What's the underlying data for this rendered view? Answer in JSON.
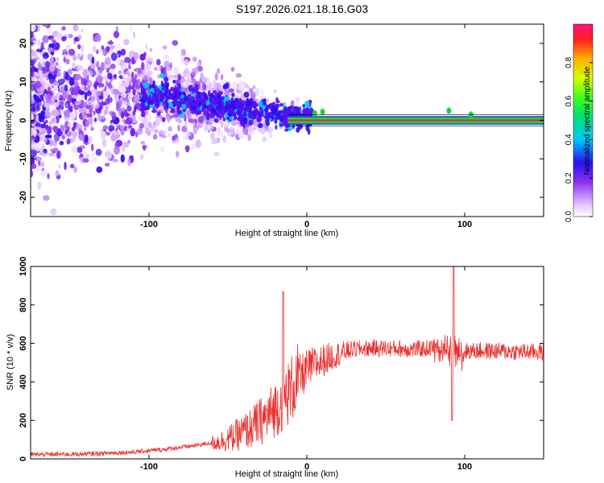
{
  "title": "S197.2026.021.18.16.G03",
  "chart_data": [
    {
      "type": "heatmap",
      "name": "spectrogram",
      "xlabel": "Height of straight line (km)",
      "ylabel": "Frequency (Hz)",
      "xlim": [
        -175,
        150
      ],
      "ylim": [
        -25,
        25
      ],
      "xticks": [
        -100,
        0,
        100
      ],
      "xtick_labels": [
        "-100",
        "0",
        "100"
      ],
      "yticks": [
        20,
        10,
        0,
        -10,
        -20
      ],
      "ytick_labels": [
        "20",
        "10",
        "0",
        "-10",
        "-20"
      ],
      "trend": [
        {
          "x": -100,
          "y": 6
        },
        {
          "x": -90,
          "y": 7
        },
        {
          "x": -80,
          "y": 5
        },
        {
          "x": -60,
          "y": 4
        },
        {
          "x": -40,
          "y": 3
        },
        {
          "x": -20,
          "y": 2
        },
        {
          "x": -12,
          "y": 1
        },
        {
          "x": 0,
          "y": 0.5
        },
        {
          "x": 8,
          "y": 1.5
        },
        {
          "x": 150,
          "y": 0
        }
      ],
      "carrier_band_hz": [
        -0.8,
        0.8
      ],
      "colorbar": {
        "label": "Normalized spectral amplitude",
        "ticks": [
          0.0,
          0.2,
          0.4,
          0.6,
          0.8
        ],
        "tick_labels": [
          "0.0",
          "0.2",
          "0.4",
          "0.6",
          "0.8"
        ]
      }
    },
    {
      "type": "line",
      "name": "snr",
      "xlabel": "Height of straight line (km)",
      "ylabel": "SNR (10 * v/v)",
      "xlim": [
        -175,
        150
      ],
      "ylim": [
        0,
        1000
      ],
      "xticks": [
        -100,
        0,
        100
      ],
      "xtick_labels": [
        "-100",
        "0",
        "100"
      ],
      "yticks": [
        0,
        200,
        400,
        600,
        800,
        1000
      ],
      "ytick_labels": [
        "0",
        "200",
        "400",
        "600",
        "800",
        "1000"
      ],
      "series": [
        {
          "name": "SNR",
          "color": "#e83030",
          "envelope": {
            "x": [
              -175,
              -140,
              -110,
              -90,
              -70,
              -55,
              -45,
              -35,
              -25,
              -18,
              -10,
              -5,
              0,
              5,
              10,
              15,
              20,
              25,
              30,
              40,
              50,
              60,
              70,
              80,
              85,
              90,
              93,
              96,
              100,
              110,
              120,
              130,
              140,
              150
            ],
            "y": [
              22,
              25,
              35,
              50,
              70,
              90,
              120,
              160,
              220,
              280,
              360,
              420,
              460,
              490,
              510,
              530,
              545,
              560,
              570,
              575,
              575,
              572,
              570,
              575,
              575,
              570,
              560,
              555,
              560,
              562,
              560,
              558,
              556,
              555
            ]
          },
          "spikes": [
            {
              "x": -15,
              "y": 870
            },
            {
              "x": 93,
              "y": 1000
            },
            {
              "x": 92,
              "y": 200
            }
          ]
        }
      ]
    }
  ]
}
